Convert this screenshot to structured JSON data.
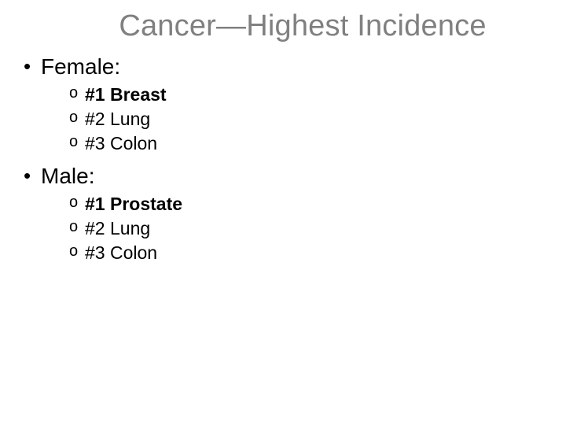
{
  "title": "Cancer—Highest Incidence",
  "colors": {
    "title": "#808080",
    "body": "#000000",
    "background": "#ffffff"
  },
  "typography": {
    "font_family": "Arial",
    "title_fontsize": 38,
    "level1_fontsize": 28,
    "level2_fontsize": 23
  },
  "groups": [
    {
      "label": "Female:",
      "items": [
        {
          "rank": "#1",
          "name": "Breast",
          "bold": true
        },
        {
          "rank": "#2",
          "name": "Lung",
          "bold": false
        },
        {
          "rank": "#3",
          "name": "Colon",
          "bold": false
        }
      ]
    },
    {
      "label": "Male:",
      "items": [
        {
          "rank": "#1",
          "name": "Prostate",
          "bold": true
        },
        {
          "rank": "#2",
          "name": "Lung",
          "bold": false
        },
        {
          "rank": "#3",
          "name": "Colon",
          "bold": false
        }
      ]
    }
  ]
}
